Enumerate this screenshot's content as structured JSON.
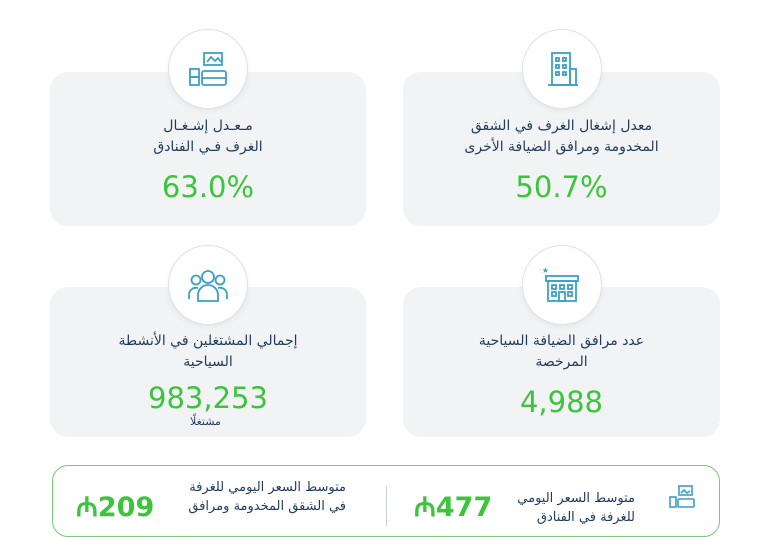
{
  "cards": {
    "hotel_occupancy": {
      "label": "مـعـدل إشـغـال\nالغرف فـي الفنادق",
      "value": "63.0%",
      "icon": "hotel-room-icon"
    },
    "apartment_occupancy": {
      "label": "معدل إشغال الغرف في الشقق\nالمخدومة ومرافق الضيافة الأخرى",
      "value": "50.7%",
      "icon": "building-icon"
    },
    "tourism_employees": {
      "label": "إجمالي المشتغلين في الأنشطة\nالسياحية",
      "value": "983,253",
      "unit": "مشتغلًا",
      "icon": "people-icon"
    },
    "licensed_facilities": {
      "label": "عدد مرافق الضيافة السياحية\nالمرخصة",
      "value": "4,988",
      "icon": "hotel-stars-icon"
    }
  },
  "banner": {
    "left_text": "متوسط السعر اليومي للغرفة\nفي الشقق المخدومة ومرافق",
    "left_value": "209",
    "right_text": "متوسط السعر اليومي\nللغرفة في الفنادق",
    "right_value": "477",
    "icon": "hotel-room-icon"
  },
  "colors": {
    "accent": "#3cc43c",
    "text": "#1e3a5c",
    "icon": "#3aa0c8"
  }
}
